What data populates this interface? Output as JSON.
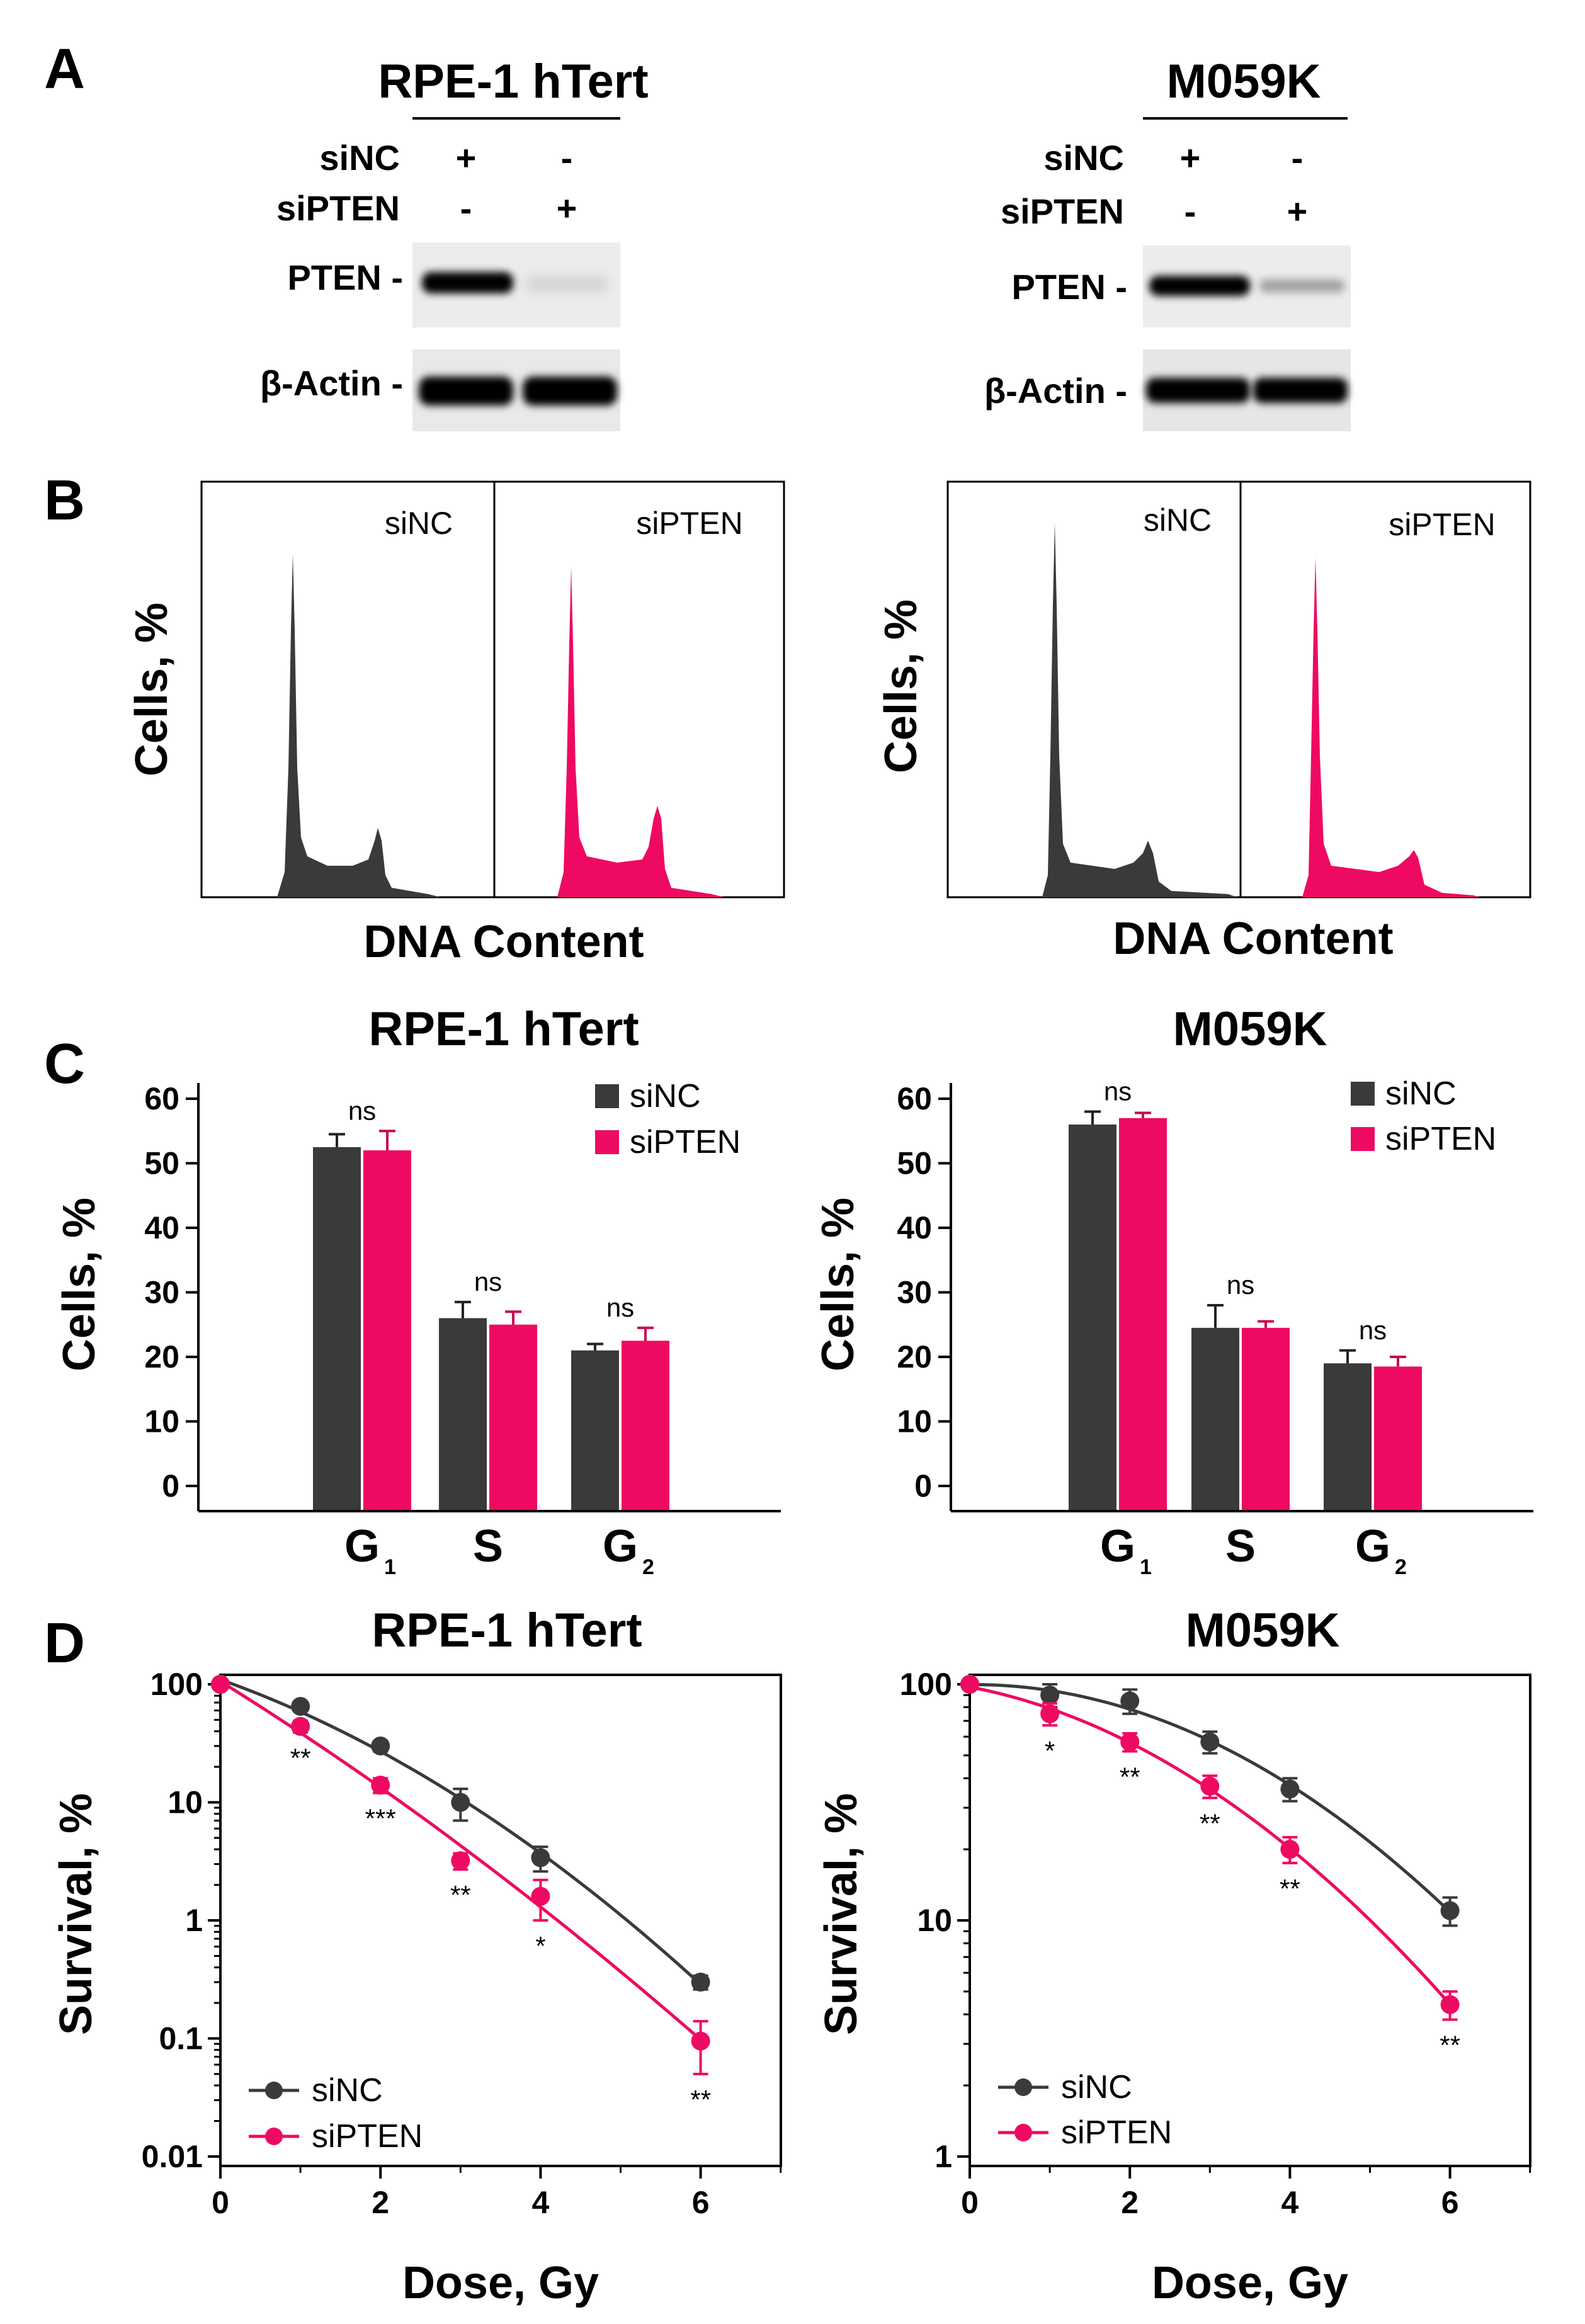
{
  "colors": {
    "siNC": "#3a3a3a",
    "siPTEN": "#ee0a62",
    "axis": "#000000"
  },
  "panel_labels": [
    "A",
    "B",
    "C",
    "D"
  ],
  "panelA": [
    {
      "title": "RPE-1 hTert",
      "siNC_row": {
        "label": "siNC",
        "values": [
          "+",
          "-"
        ]
      },
      "siPTEN_row": {
        "label": "siPTEN",
        "values": [
          "-",
          "+"
        ]
      },
      "blots": [
        "PTEN -",
        "β-Actin -"
      ],
      "pten_band_intensity": [
        1.0,
        0.15
      ],
      "actin_band_intensity": [
        1.0,
        1.0
      ]
    },
    {
      "title": "M059K",
      "siNC_row": {
        "label": "siNC",
        "values": [
          "+",
          "-"
        ]
      },
      "siPTEN_row": {
        "label": "siPTEN",
        "values": [
          "-",
          "+"
        ]
      },
      "blots": [
        "PTEN -",
        "β-Actin -"
      ],
      "pten_band_intensity": [
        1.0,
        0.35
      ],
      "actin_band_intensity": [
        1.0,
        1.0
      ]
    }
  ],
  "panelB": [
    {
      "ylabel": "Cells, %",
      "xlabel": "DNA Content",
      "sub_labels": [
        "siNC",
        "siPTEN"
      ]
    },
    {
      "ylabel": "Cells, %",
      "xlabel": "DNA Content",
      "sub_labels": [
        "siNC",
        "siPTEN"
      ]
    }
  ],
  "chart_data": [
    {
      "type": "bar",
      "title": "RPE-1 hTert",
      "ylabel": "Cells, %",
      "xlabel": "",
      "categories": [
        "G",
        "S",
        "G"
      ],
      "category_subscripts": [
        "1",
        "",
        "2"
      ],
      "ylim": [
        0,
        60
      ],
      "yticks": [
        "0",
        "10",
        "20",
        "30",
        "40",
        "50",
        "60"
      ],
      "series": [
        {
          "name": "siNC",
          "values": [
            52.5,
            26,
            21
          ],
          "errors": [
            2,
            2.5,
            1
          ]
        },
        {
          "name": "siPTEN",
          "values": [
            52,
            25,
            22.5
          ],
          "errors": [
            3,
            2,
            2
          ]
        }
      ],
      "annotations": [
        "ns",
        "ns",
        "ns"
      ],
      "legend": "top-right"
    },
    {
      "type": "bar",
      "title": "M059K",
      "ylabel": "Cells, %",
      "xlabel": "",
      "categories": [
        "G",
        "S",
        "G"
      ],
      "category_subscripts": [
        "1",
        "",
        "2"
      ],
      "ylim": [
        0,
        60
      ],
      "yticks": [
        "0",
        "10",
        "20",
        "30",
        "40",
        "50",
        "60"
      ],
      "series": [
        {
          "name": "siNC",
          "values": [
            56,
            24.5,
            19
          ],
          "errors": [
            2,
            3.5,
            2
          ]
        },
        {
          "name": "siPTEN",
          "values": [
            57,
            24.5,
            18.5
          ],
          "errors": [
            0.8,
            1,
            1.5
          ]
        }
      ],
      "annotations": [
        "ns",
        "ns",
        "ns"
      ],
      "legend": "top-right"
    },
    {
      "type": "line",
      "title": "RPE-1 hTert",
      "ylabel": "Survival, %",
      "xlabel": "Dose, Gy",
      "y_scale": "log",
      "ylim": [
        0.01,
        100
      ],
      "xlim": [
        0,
        7
      ],
      "yticks": [
        "0.01",
        "0.1",
        "1",
        "10",
        "100"
      ],
      "xticks": [
        "0",
        "2",
        "4",
        "6"
      ],
      "series": [
        {
          "name": "siNC",
          "x": [
            0,
            1,
            2,
            3,
            4,
            6
          ],
          "y": [
            100,
            65,
            30,
            10,
            3.4,
            0.3
          ],
          "errors": [
            0,
            5,
            3,
            3,
            0.8,
            0.04
          ]
        },
        {
          "name": "siPTEN",
          "x": [
            0,
            1,
            2,
            3,
            4,
            6
          ],
          "y": [
            100,
            44,
            14,
            3.2,
            1.6,
            0.095
          ],
          "errors": [
            0,
            5,
            2,
            0.5,
            0.6,
            0.045
          ]
        }
      ],
      "annotations": [
        {
          "x": 1,
          "text": "**"
        },
        {
          "x": 2,
          "text": "***"
        },
        {
          "x": 3,
          "text": "**"
        },
        {
          "x": 4,
          "text": "*"
        },
        {
          "x": 6,
          "text": "**"
        }
      ],
      "legend": "bottom-left"
    },
    {
      "type": "line",
      "title": "M059K",
      "ylabel": "Survival, %",
      "xlabel": "Dose, Gy",
      "y_scale": "log",
      "ylim": [
        1,
        100
      ],
      "xlim": [
        0,
        7
      ],
      "yticks": [
        "1",
        "10",
        "100"
      ],
      "xticks": [
        "0",
        "2",
        "4",
        "6"
      ],
      "series": [
        {
          "name": "siNC",
          "x": [
            0,
            1,
            2,
            3,
            4,
            6
          ],
          "y": [
            100,
            90,
            85,
            57,
            36,
            11
          ],
          "errors": [
            0,
            10,
            10,
            6,
            4,
            1.5
          ]
        },
        {
          "name": "siPTEN",
          "x": [
            0,
            1,
            2,
            3,
            4,
            6
          ],
          "y": [
            100,
            75,
            57,
            37,
            20,
            4.4
          ],
          "errors": [
            0,
            8,
            5,
            4,
            2.5,
            0.6
          ]
        }
      ],
      "annotations": [
        {
          "x": 1,
          "text": "*"
        },
        {
          "x": 2,
          "text": "**"
        },
        {
          "x": 3,
          "text": "**"
        },
        {
          "x": 4,
          "text": "**"
        },
        {
          "x": 6,
          "text": "**"
        }
      ],
      "legend": "bottom-left"
    }
  ]
}
